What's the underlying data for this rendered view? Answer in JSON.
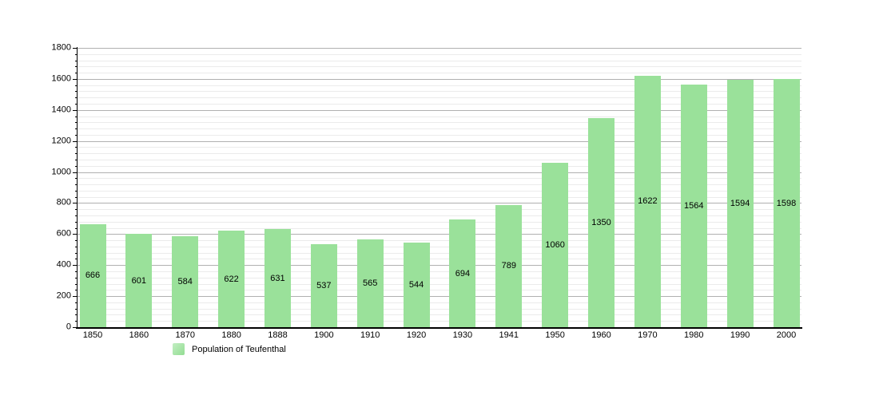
{
  "chart_data": {
    "type": "bar",
    "title": "",
    "categories": [
      "1850",
      "1860",
      "1870",
      "1880",
      "1888",
      "1900",
      "1910",
      "1920",
      "1930",
      "1941",
      "1950",
      "1960",
      "1970",
      "1980",
      "1990",
      "2000"
    ],
    "series": [
      {
        "name": "Population of Teufenthal",
        "values": [
          666,
          601,
          584,
          622,
          631,
          537,
          565,
          544,
          694,
          789,
          1060,
          1350,
          1622,
          1564,
          1594,
          1598
        ]
      }
    ],
    "xlabel": "",
    "ylabel": "",
    "ylim": [
      0,
      1800
    ],
    "y_tick_step": 200,
    "y_minor_tick_step": 40,
    "y_tick_labels": [
      "0",
      "200",
      "400",
      "600",
      "800",
      "1000",
      "1200",
      "1400",
      "1600",
      "1800"
    ],
    "grid": "horizontal, major and minor lines",
    "bar_value_labels": "shown centered inside each bar",
    "legend_position": "bottom-left"
  },
  "legend": {
    "label": "Population of Teufenthal"
  },
  "colors": {
    "bar_fill": "#9ae19a",
    "major_gridline": "#b0b0b0",
    "minor_gridline": "#ebebeb",
    "axis": "#000000",
    "text": "#000000",
    "background": "#ffffff"
  }
}
